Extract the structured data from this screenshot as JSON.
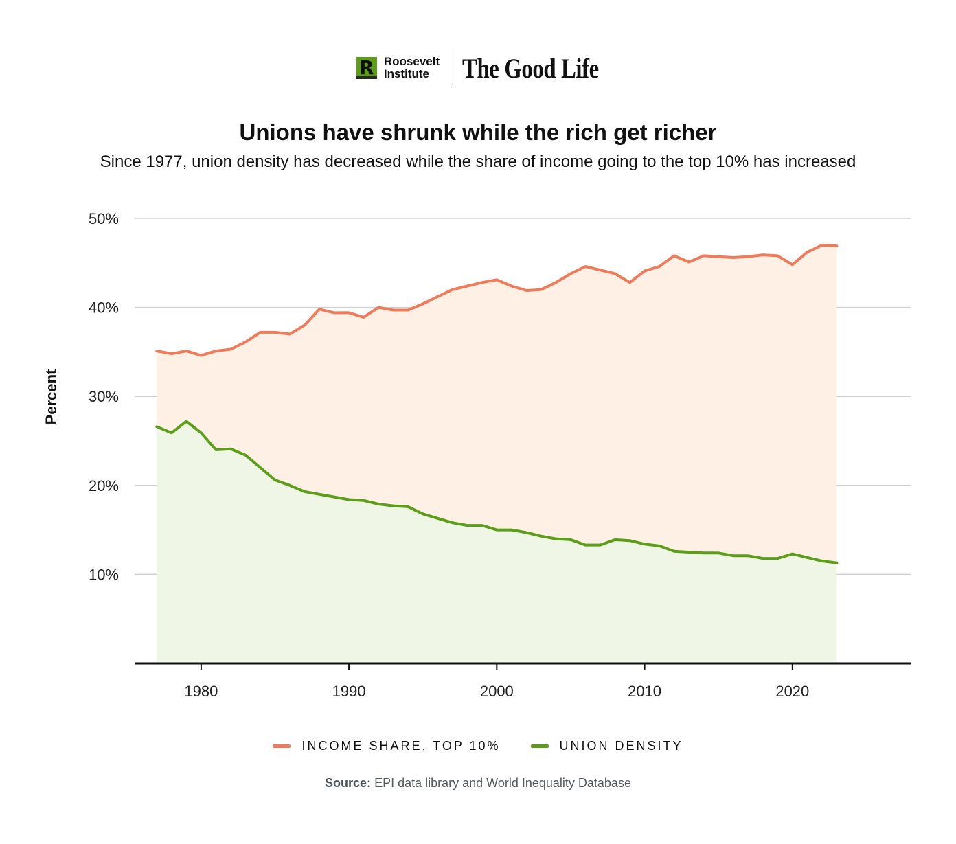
{
  "logo": {
    "brand_line1": "Roosevelt",
    "brand_line2": "Institute",
    "series_name": "The Good Life"
  },
  "chart_data": {
    "type": "area",
    "title": "Unions have shrunk while the rich get richer",
    "subtitle": "Since 1977, union density has decreased while the share of income going to the top 10% has increased",
    "ylabel": "Percent",
    "xlabel": "",
    "ylim": [
      0,
      50
    ],
    "xlim": [
      1975.5,
      2028
    ],
    "yticks": [
      10,
      20,
      30,
      40,
      50
    ],
    "ytick_labels": [
      "10%",
      "20%",
      "30%",
      "40%",
      "50%"
    ],
    "xticks": [
      1980,
      1990,
      2000,
      2010,
      2020
    ],
    "xtick_labels": [
      "1980",
      "1990",
      "2000",
      "2010",
      "2020"
    ],
    "grid": true,
    "legend_position": "bottom",
    "x": [
      1977,
      1978,
      1979,
      1980,
      1981,
      1982,
      1983,
      1984,
      1985,
      1986,
      1987,
      1988,
      1989,
      1990,
      1991,
      1992,
      1993,
      1994,
      1995,
      1996,
      1997,
      1998,
      1999,
      2000,
      2001,
      2002,
      2003,
      2004,
      2005,
      2006,
      2007,
      2008,
      2009,
      2010,
      2011,
      2012,
      2013,
      2014,
      2015,
      2016,
      2017,
      2018,
      2019,
      2020,
      2021,
      2022,
      2023
    ],
    "series": [
      {
        "name": "INCOME SHARE, TOP 10%",
        "color": "#ef7b5a",
        "fill": "#fef0e4",
        "values": [
          35.1,
          34.8,
          35.1,
          34.6,
          35.1,
          35.3,
          36.1,
          37.2,
          37.2,
          37.0,
          38.0,
          39.8,
          39.4,
          39.4,
          38.9,
          40.0,
          39.7,
          39.7,
          40.4,
          41.2,
          42.0,
          42.4,
          42.8,
          43.1,
          42.4,
          41.9,
          42.0,
          42.8,
          43.8,
          44.6,
          44.2,
          43.8,
          42.8,
          44.1,
          44.6,
          45.8,
          45.1,
          45.8,
          45.7,
          45.6,
          45.7,
          45.9,
          45.8,
          44.8,
          46.2,
          47.0,
          46.9
        ]
      },
      {
        "name": "UNION DENSITY",
        "color": "#5c9e1a",
        "fill": "#eff6e6",
        "values": [
          26.6,
          25.9,
          27.2,
          25.9,
          24.0,
          24.1,
          23.4,
          22.0,
          20.6,
          20.0,
          19.3,
          19.0,
          18.7,
          18.4,
          18.3,
          17.9,
          17.7,
          17.6,
          16.8,
          16.3,
          15.8,
          15.5,
          15.5,
          15.0,
          15.0,
          14.7,
          14.3,
          14.0,
          13.9,
          13.3,
          13.3,
          13.9,
          13.8,
          13.4,
          13.2,
          12.6,
          12.5,
          12.4,
          12.4,
          12.1,
          12.1,
          11.8,
          11.8,
          12.3,
          11.9,
          11.5,
          11.3
        ]
      }
    ]
  },
  "source": {
    "label": "Source:",
    "text": "EPI data library and World Inequality Database"
  }
}
